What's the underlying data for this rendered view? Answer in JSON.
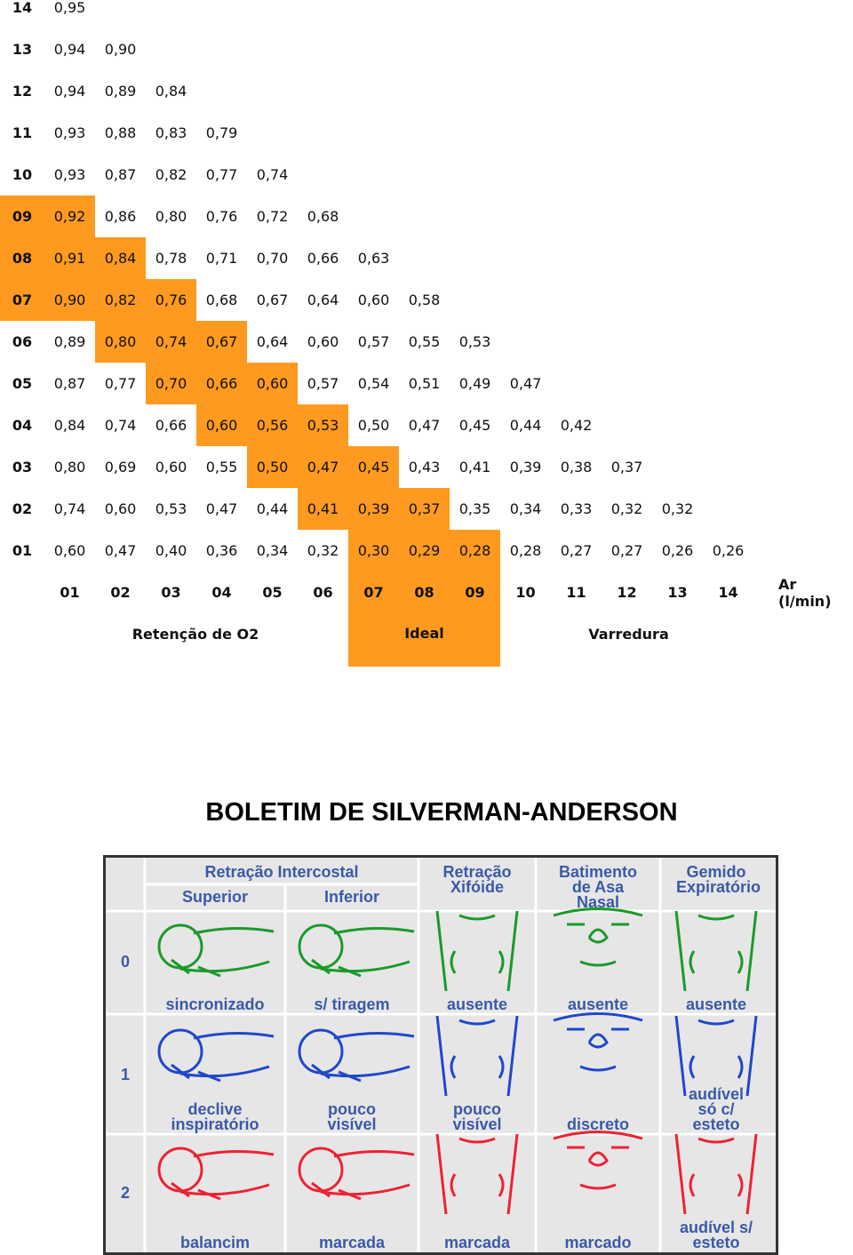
{
  "table": {
    "rows": [
      {
        "label": "14",
        "values": [
          "0,95"
        ]
      },
      {
        "label": "13",
        "values": [
          "0,94",
          "0,90"
        ]
      },
      {
        "label": "12",
        "values": [
          "0,94",
          "0,89",
          "0,84"
        ]
      },
      {
        "label": "11",
        "values": [
          "0,93",
          "0,88",
          "0,83",
          "0,79"
        ]
      },
      {
        "label": "10",
        "values": [
          "0,93",
          "0,87",
          "0,82",
          "0,77",
          "0,74"
        ]
      },
      {
        "label": "09",
        "values": [
          "0,92",
          "0,86",
          "0,80",
          "0,76",
          "0,72",
          "0,68"
        ]
      },
      {
        "label": "08",
        "values": [
          "0,91",
          "0,84",
          "0,78",
          "0,71",
          "0,70",
          "0,66",
          "0,63"
        ]
      },
      {
        "label": "07",
        "values": [
          "0,90",
          "0,82",
          "0,76",
          "0,68",
          "0,67",
          "0,64",
          "0,60",
          "0,58"
        ]
      },
      {
        "label": "06",
        "values": [
          "0,89",
          "0,80",
          "0,74",
          "0,67",
          "0,64",
          "0,60",
          "0,57",
          "0,55",
          "0,53"
        ]
      },
      {
        "label": "05",
        "values": [
          "0,87",
          "0,77",
          "0,70",
          "0,66",
          "0,60",
          "0,57",
          "0,54",
          "0,51",
          "0,49",
          "0,47"
        ]
      },
      {
        "label": "04",
        "values": [
          "0,84",
          "0,74",
          "0,66",
          "0,60",
          "0,56",
          "0,53",
          "0,50",
          "0,47",
          "0,45",
          "0,44",
          "0,42"
        ]
      },
      {
        "label": "03",
        "values": [
          "0,80",
          "0,69",
          "0,60",
          "0,55",
          "0,50",
          "0,47",
          "0,45",
          "0,43",
          "0,41",
          "0,39",
          "0,38",
          "0,37"
        ]
      },
      {
        "label": "02",
        "values": [
          "0,74",
          "0,60",
          "0,53",
          "0,47",
          "0,44",
          "0,41",
          "0,39",
          "0,37",
          "0,35",
          "0,34",
          "0,33",
          "0,32",
          "0,32"
        ]
      },
      {
        "label": "01",
        "values": [
          "0,60",
          "0,47",
          "0,40",
          "0,36",
          "0,34",
          "0,32",
          "0,30",
          "0,29",
          "0,28",
          "0,28",
          "0,27",
          "0,27",
          "0,26",
          "0,26"
        ]
      }
    ],
    "header": [
      "01",
      "02",
      "03",
      "04",
      "05",
      "06",
      "07",
      "08",
      "09",
      "10",
      "11",
      "12",
      "13",
      "14",
      "Ar (l/min)"
    ],
    "legend": [
      "Retenção de O2",
      "Ideal",
      "Varredura"
    ]
  },
  "silverman": {
    "title": "BOLETIM DE SILVERMAN-ANDERSON",
    "group_header": "Retração Intercostal",
    "columns": [
      "Superior",
      "Inferior",
      "Retração Xifóide",
      "Batimento de Asa Nasal",
      "Gemido Expiratório"
    ],
    "rows": [
      {
        "score": "0",
        "captions": [
          "sincronizado",
          "s/ tiragem",
          "ausente",
          "ausente",
          "ausente"
        ]
      },
      {
        "score": "1",
        "captions": [
          "declive inspiratório",
          "pouco visível",
          "pouco visível",
          "discreto",
          "audível só c/ esteto"
        ]
      },
      {
        "score": "2",
        "captions": [
          "balancim",
          "marcada",
          "marcada",
          "marcado",
          "audível s/ esteto"
        ]
      }
    ]
  }
}
